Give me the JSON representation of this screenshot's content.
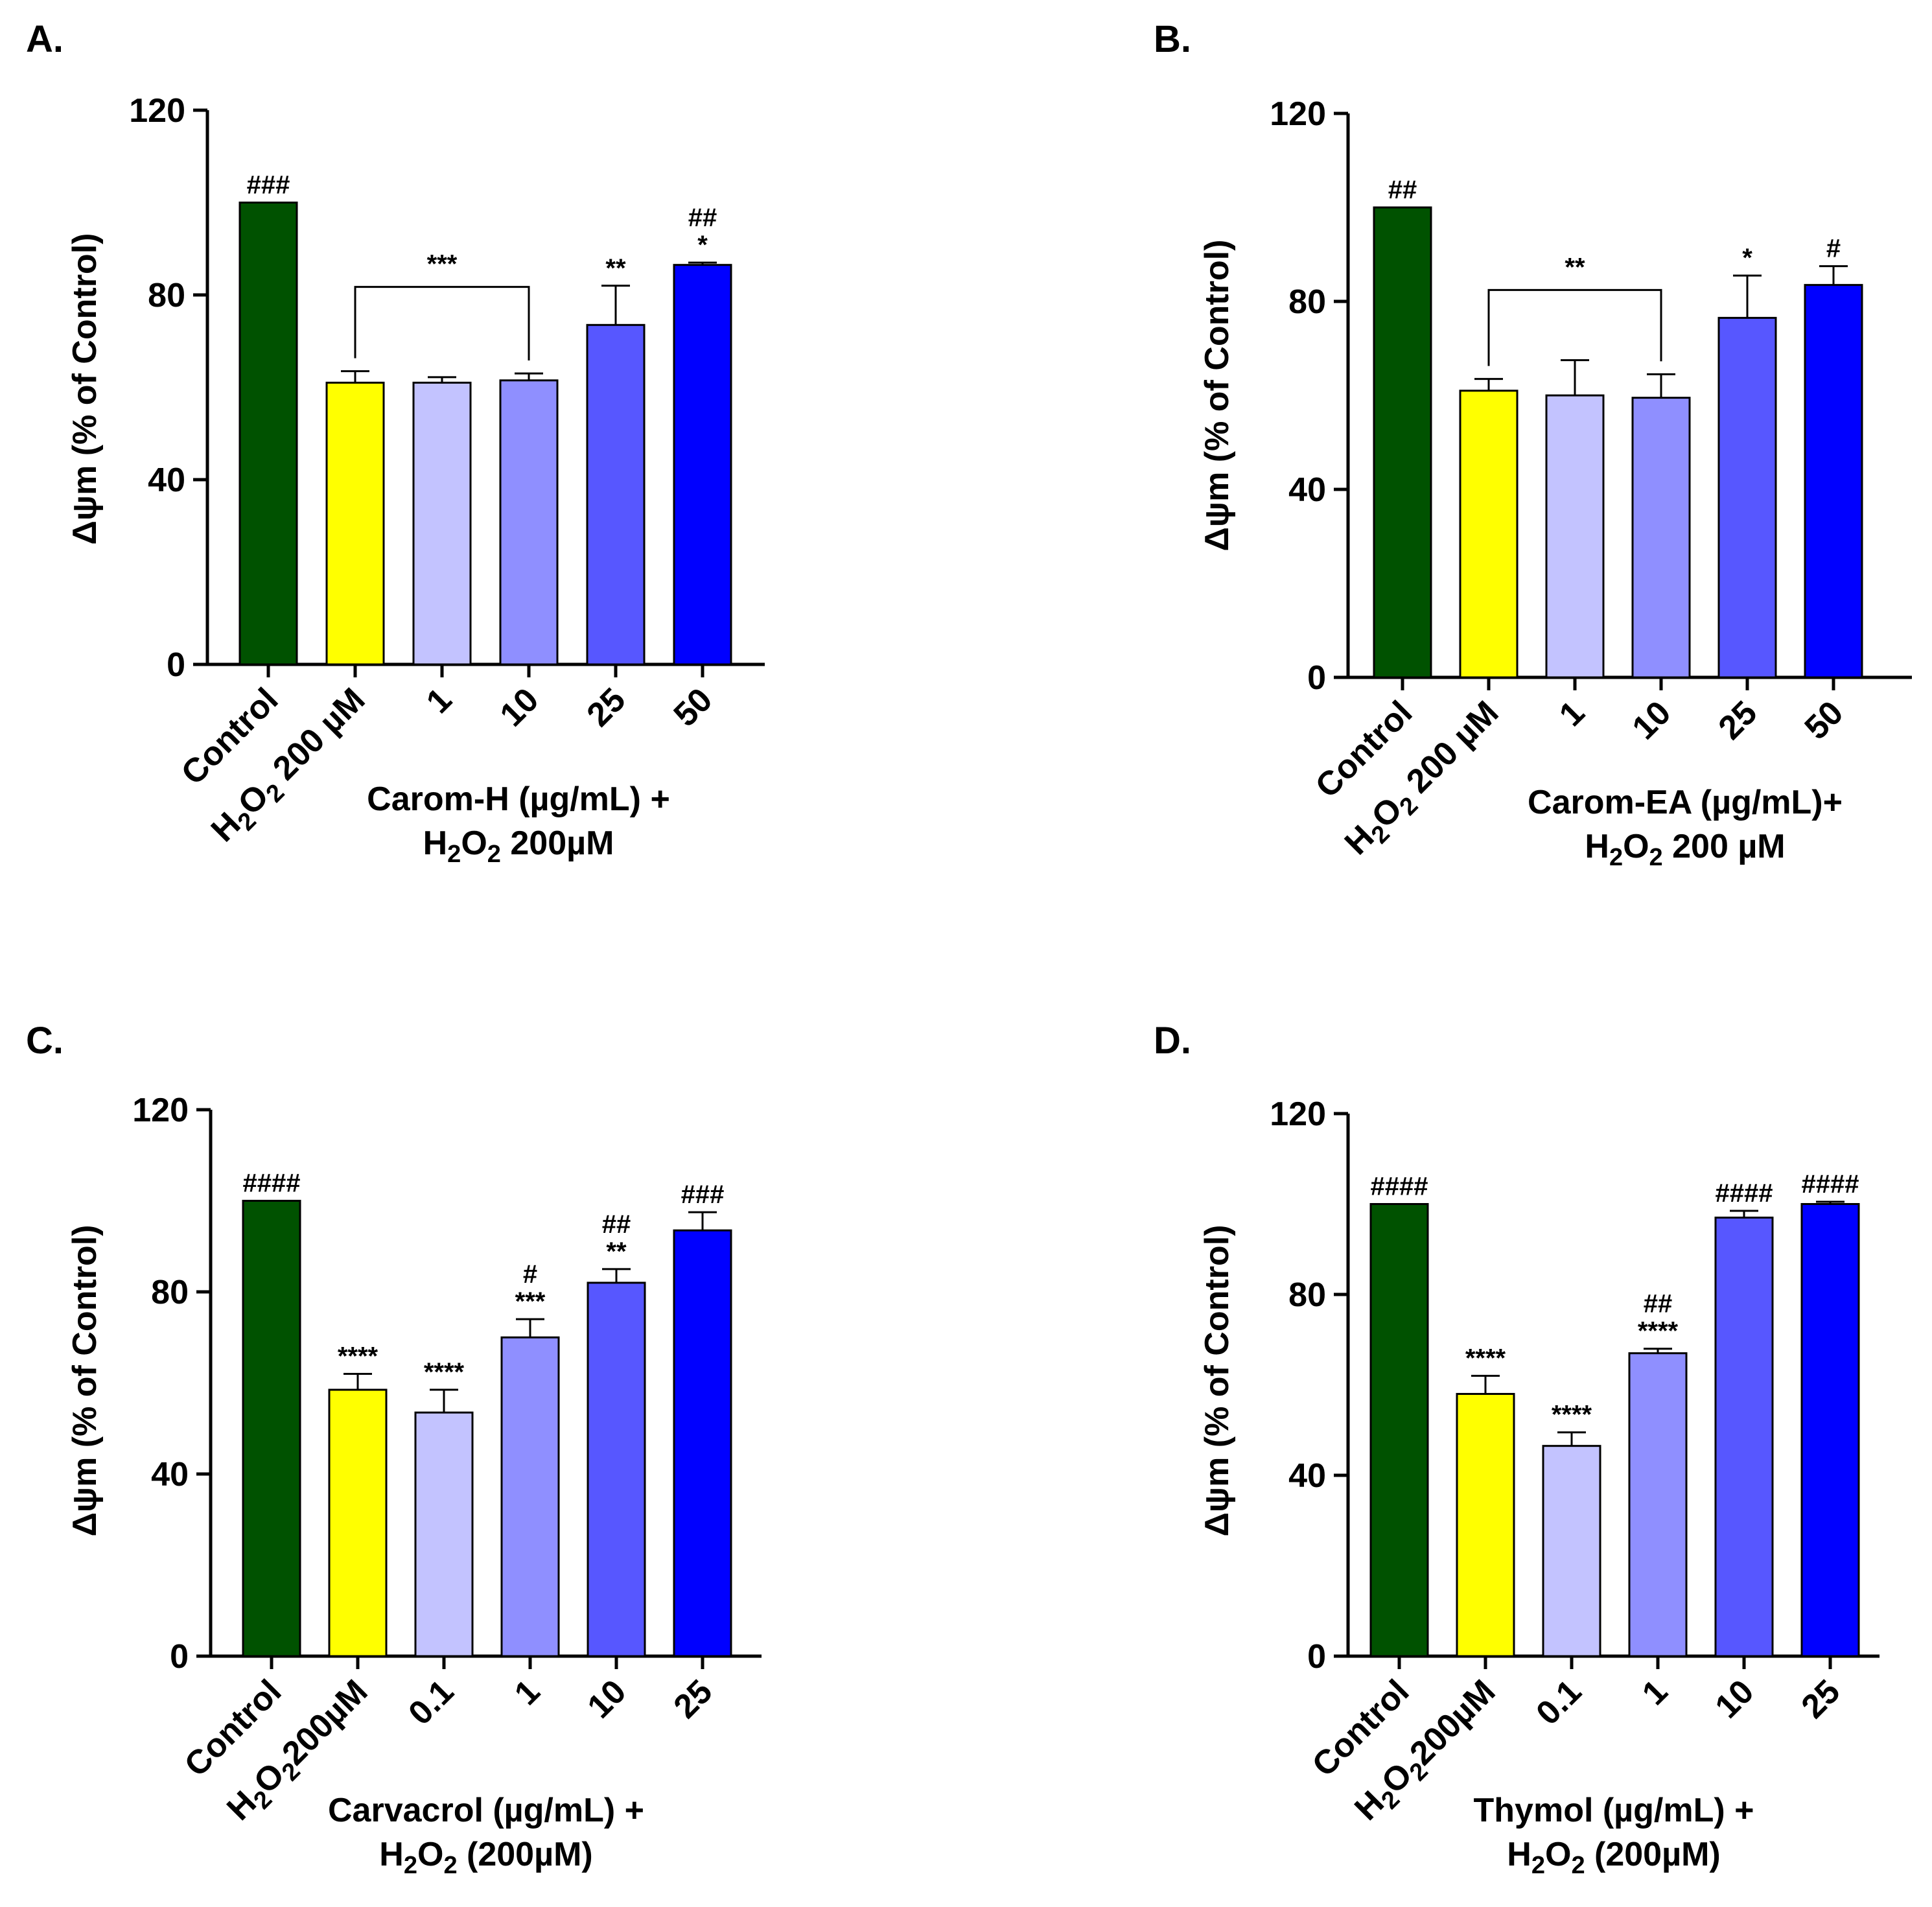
{
  "chart_data": [
    {
      "type": "bar",
      "panel": "A.",
      "ylabel": "Δψm (% of Control)",
      "ylim": [
        0,
        120
      ],
      "yticks": [
        "0",
        "40",
        "80",
        "120"
      ],
      "categories": [
        "Control",
        "H₂O₂ 200 µM",
        "1",
        "10",
        "25",
        "50"
      ],
      "values": [
        100,
        61,
        61,
        61.5,
        73.5,
        86.5
      ],
      "errors": [
        0,
        2.5,
        1.2,
        1.5,
        8.5,
        0.5
      ],
      "colors": [
        "#005200",
        "#ffff00",
        "#c3c3ff",
        "#8f8fff",
        "#5757ff",
        "#0000ff"
      ],
      "significance": [
        "###",
        "",
        "",
        "",
        "**",
        "*"
      ],
      "significance_top": [
        "",
        "",
        "",
        "",
        "",
        "##"
      ],
      "bracket_label": "***",
      "group_label": [
        "Carom-H (µg/mL) +",
        "H₂O₂ 200µM"
      ]
    },
    {
      "type": "bar",
      "panel": "B.",
      "ylabel": "Δψm (% of Control)",
      "ylim": [
        0,
        120
      ],
      "yticks": [
        "0",
        "40",
        "80",
        "120"
      ],
      "categories": [
        "Control",
        "H₂O₂ 200 µM",
        "1",
        "10",
        "25",
        "50"
      ],
      "values": [
        100,
        61,
        60,
        59.5,
        76.5,
        83.5
      ],
      "errors": [
        0,
        2.5,
        7.5,
        5,
        9,
        4
      ],
      "colors": [
        "#005200",
        "#ffff00",
        "#c3c3ff",
        "#8f8fff",
        "#5757ff",
        "#0000ff"
      ],
      "significance": [
        "##",
        "",
        "",
        "",
        "*",
        "#"
      ],
      "significance_top": [
        "",
        "",
        "",
        "",
        "",
        ""
      ],
      "bracket_label": "**",
      "group_label": [
        "Carom-EA (µg/mL)+",
        "H₂O₂ 200 µM"
      ]
    },
    {
      "type": "bar",
      "panel": "C.",
      "ylabel": "Δψm (% of Control)",
      "ylim": [
        0,
        120
      ],
      "yticks": [
        "0",
        "40",
        "80",
        "120"
      ],
      "categories": [
        "Control",
        "H₂O₂200µM",
        "0.1",
        "1",
        "10",
        "25"
      ],
      "values": [
        100,
        58.5,
        53.5,
        70,
        82,
        93.5
      ],
      "errors": [
        0,
        3.5,
        5,
        4,
        3,
        4
      ],
      "colors": [
        "#005200",
        "#ffff00",
        "#c3c3ff",
        "#8f8fff",
        "#5757ff",
        "#0000ff"
      ],
      "significance": [
        "####",
        "****",
        "****",
        "***",
        "**",
        "###"
      ],
      "significance_top": [
        "",
        "",
        "",
        "#",
        "##",
        ""
      ],
      "bracket_label": "",
      "group_label": [
        "Carvacrol (µg/mL) +",
        "H₂O₂ (200µM)"
      ]
    },
    {
      "type": "bar",
      "panel": "D.",
      "ylabel": "Δψm (% of Control)",
      "ylim": [
        0,
        120
      ],
      "yticks": [
        "0",
        "40",
        "80",
        "120"
      ],
      "categories": [
        "Control",
        "H₂O₂200µM",
        "0.1",
        "1",
        "10",
        "25"
      ],
      "values": [
        100,
        58,
        46.5,
        67,
        97,
        100
      ],
      "errors": [
        0,
        4,
        3,
        1,
        1.5,
        0.5
      ],
      "colors": [
        "#005200",
        "#ffff00",
        "#c3c3ff",
        "#8f8fff",
        "#5757ff",
        "#0000ff"
      ],
      "significance": [
        "####",
        "****",
        "****",
        "****",
        "####",
        "####"
      ],
      "significance_top": [
        "",
        "",
        "",
        "##",
        "",
        ""
      ],
      "bracket_label": "",
      "group_label": [
        "Thymol (µg/mL) +",
        "H₂O₂ (200µM)"
      ]
    }
  ]
}
